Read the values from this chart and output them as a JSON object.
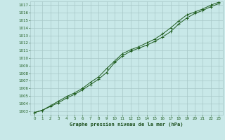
{
  "title": "Graphe pression niveau de la mer (hPa)",
  "x_hours": [
    0,
    1,
    2,
    3,
    4,
    5,
    6,
    7,
    8,
    9,
    10,
    11,
    12,
    13,
    14,
    15,
    16,
    17,
    18,
    19,
    20,
    21,
    22,
    23
  ],
  "line1": [
    1002.8,
    1003.1,
    1003.6,
    1004.1,
    1004.7,
    1005.2,
    1005.8,
    1006.5,
    1007.2,
    1008.1,
    1009.4,
    1010.3,
    1010.9,
    1011.3,
    1011.7,
    1012.2,
    1012.8,
    1013.5,
    1014.5,
    1015.3,
    1015.9,
    1016.3,
    1016.8,
    1017.2
  ],
  "line2": [
    1002.8,
    1003.1,
    1003.7,
    1004.3,
    1004.9,
    1005.4,
    1006.0,
    1006.8,
    1007.5,
    1008.6,
    1009.6,
    1010.6,
    1011.1,
    1011.5,
    1012.0,
    1012.5,
    1013.2,
    1014.0,
    1014.9,
    1015.7,
    1016.1,
    1016.5,
    1017.0,
    1017.4
  ],
  "line_color": "#1e5c1e",
  "bg_color": "#c8e8e8",
  "grid_color": "#a8c8c8",
  "label_color": "#1e5c1e",
  "title_color": "#1a4d1a",
  "ylim": [
    1002.5,
    1017.5
  ],
  "ytick_min": 1003,
  "ytick_max": 1017,
  "xlim": [
    -0.5,
    23.5
  ]
}
